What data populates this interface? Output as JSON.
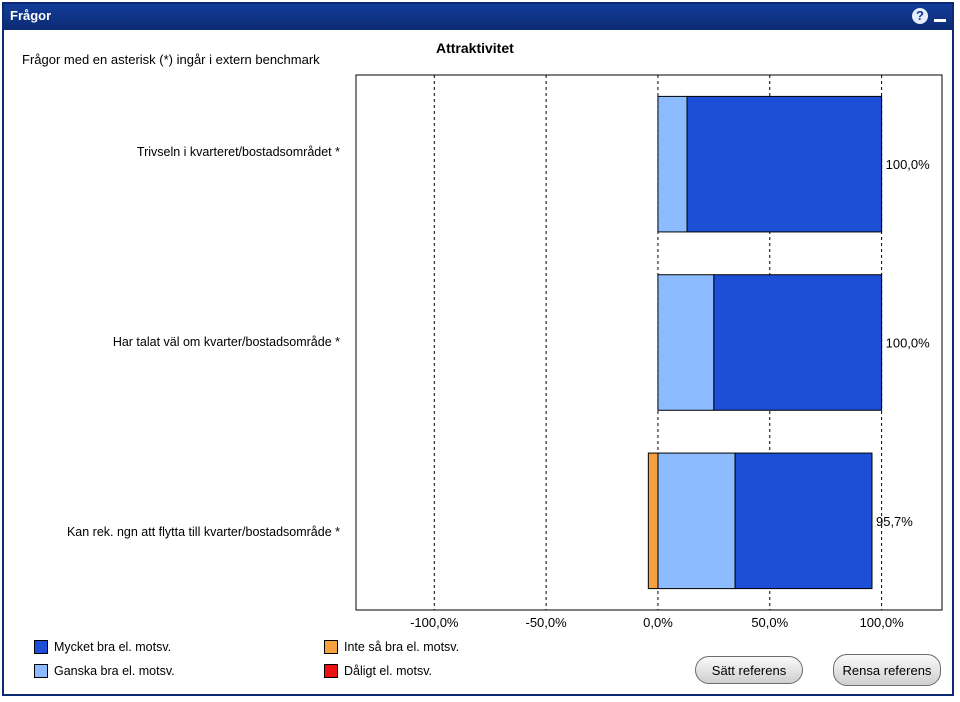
{
  "window": {
    "title": "Frågor"
  },
  "header": {
    "note": "Frågor med en asterisk (*) ingår i extern benchmark",
    "chart_title": "Attraktivitet"
  },
  "chart_data": {
    "type": "bar",
    "orientation": "horizontal",
    "stacked": true,
    "title": "Attraktivitet",
    "categories": [
      "Trivseln i kvarteret/bostadsområdet *",
      "Har talat väl om kvarter/bostadsområde *",
      "Kan rek. ngn att flytta till kvarter/bostadsområde *"
    ],
    "series": [
      {
        "name": "Ganska bra el. motsv.",
        "color": "#8cbcff",
        "values": [
          13,
          25,
          34.5
        ]
      },
      {
        "name": "Mycket bra el. motsv.",
        "color": "#1c4fd6",
        "values": [
          87,
          75,
          61.2
        ]
      },
      {
        "name": "Inte så bra el. motsv.",
        "color": "#f7a040",
        "values": [
          0,
          0,
          -4.3
        ]
      },
      {
        "name": "Dåligt el. motsv.",
        "color": "#ee1111",
        "values": [
          0,
          0,
          0
        ]
      }
    ],
    "totals": [
      "100,0%",
      "100,0%",
      "95,7%"
    ],
    "xlim": [
      -135,
      127
    ],
    "ticks": [
      -100,
      -50,
      0,
      50,
      100
    ],
    "tick_labels": [
      "-100,0%",
      "-50,0%",
      "0,0%",
      "50,0%",
      "100,0%"
    ],
    "grid": "vertical-dashed",
    "legend_position": "bottom-left"
  },
  "legend": [
    {
      "label": "Mycket bra el. motsv.",
      "color": "#1c4fd6"
    },
    {
      "label": "Inte så bra el. motsv.",
      "color": "#f7a040"
    },
    {
      "label": "Ganska bra el. motsv.",
      "color": "#8cbcff"
    },
    {
      "label": "Dåligt el. motsv.",
      "color": "#ee1111"
    }
  ],
  "buttons": {
    "set_reference": "Sätt referens",
    "clear_reference": "Rensa referens"
  },
  "icons": {
    "help": "help-icon",
    "minimize": "minimize-icon"
  }
}
